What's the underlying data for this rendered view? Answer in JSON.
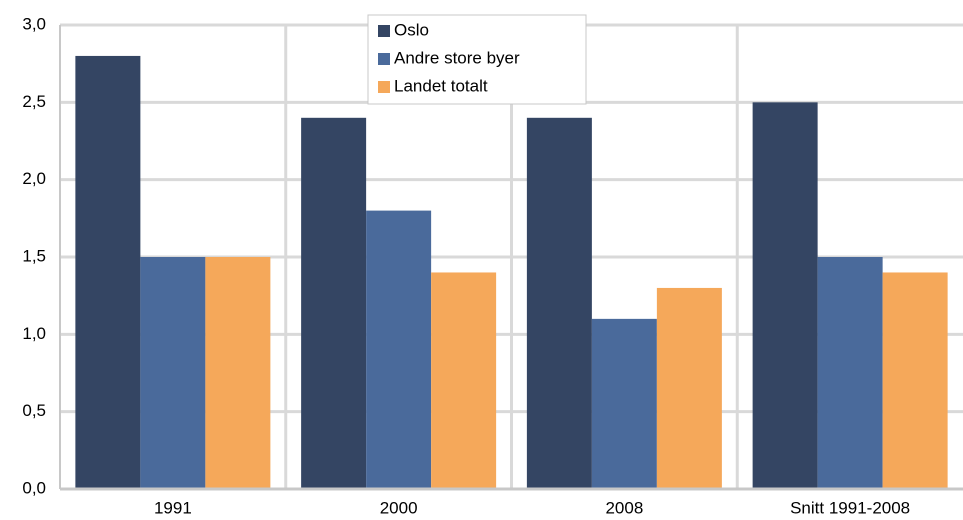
{
  "chart_data": {
    "type": "bar",
    "categories": [
      "1991",
      "2000",
      "2008",
      "Snitt 1991-2008"
    ],
    "series": [
      {
        "name": "Oslo",
        "color": "#344563",
        "values": [
          2.8,
          2.4,
          2.4,
          2.5
        ]
      },
      {
        "name": "Andre store byer",
        "color": "#4a6a9b",
        "values": [
          1.5,
          1.8,
          1.1,
          1.5
        ]
      },
      {
        "name": "Landet totalt",
        "color": "#f5a85a",
        "values": [
          1.5,
          1.4,
          1.3,
          1.4
        ]
      }
    ],
    "ylim": [
      0,
      3
    ],
    "yticks": [
      {
        "value": 0,
        "label": "0,0"
      },
      {
        "value": 0.5,
        "label": "0,5"
      },
      {
        "value": 1,
        "label": "1,0"
      },
      {
        "value": 1.5,
        "label": "1,5"
      },
      {
        "value": 2,
        "label": "2,0"
      },
      {
        "value": 2.5,
        "label": "2,5"
      },
      {
        "value": 3,
        "label": "3,0"
      }
    ],
    "grid": true,
    "legend": "top"
  }
}
